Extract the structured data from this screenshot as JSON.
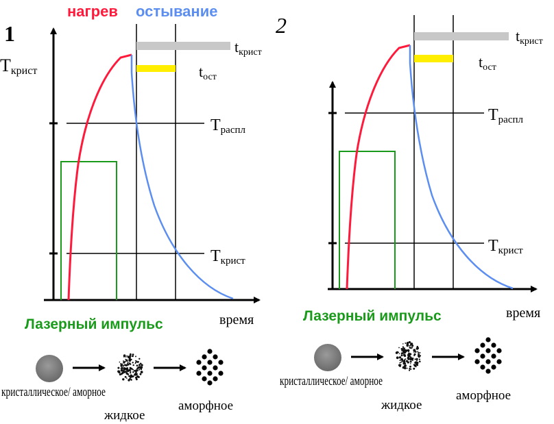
{
  "header": {
    "heating": "нагрев",
    "cooling": "остывание",
    "heating_color": "#ff1a3c",
    "cooling_color": "#5b8ef0"
  },
  "panels": [
    {
      "number": "1",
      "y_axis_label": {
        "main": "T",
        "sub": "крист"
      },
      "t_cryst_label": {
        "main": "t",
        "sub": "крист"
      },
      "t_ost_label": {
        "main": "t",
        "sub": "ост"
      },
      "t_melt_label": {
        "main": "T",
        "sub": "распл"
      },
      "t_cryst_line_label": {
        "main": "T",
        "sub": "крист"
      },
      "time_label": "время",
      "pulse_label": "Лазерный импульс"
    },
    {
      "number": "2",
      "t_cryst_label": {
        "main": "t",
        "sub": "крист"
      },
      "t_ost_label": {
        "main": "t",
        "sub": "ост"
      },
      "t_melt_label": {
        "main": "T",
        "sub": "распл"
      },
      "t_cryst_line_label": {
        "main": "T",
        "sub": "крист"
      },
      "time_label": "время",
      "pulse_label": "Лазерный импульс"
    }
  ],
  "states": {
    "crystalline_amorphous": "кристаллическое/ аморное",
    "liquid": "жидкое",
    "amorphous": "аморфное"
  },
  "colors": {
    "pulse": "#1a9a1a",
    "bar_grey": "#c8c8c8",
    "bar_yellow": "#ffee00",
    "axis": "#000000"
  }
}
